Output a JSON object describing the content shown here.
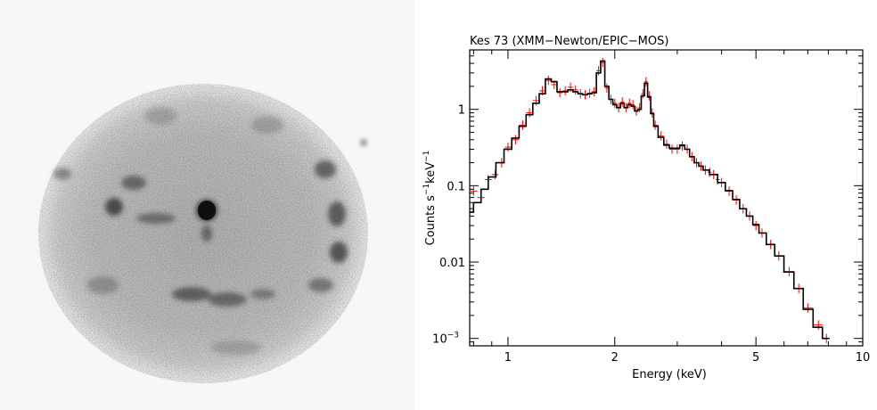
{
  "image": {
    "colormap": "inverted-grayscale",
    "description_mode": "x-ray-image"
  },
  "chart_data": {
    "type": "line",
    "title": "Kes 73 (XMM−Newton/EPIC−MOS)",
    "xlabel": "Energy (keV)",
    "ylabel": {
      "base": "Counts s",
      "sup1": "−1",
      "mid": "keV",
      "sup2": "−1"
    },
    "xscale": "log",
    "yscale": "log",
    "xlim": [
      0.78,
      10
    ],
    "ylim": [
      0.0008,
      6
    ],
    "x_tick_labels": [
      {
        "value": 1,
        "label": "1"
      },
      {
        "value": 2,
        "label": "2"
      },
      {
        "value": 5,
        "label": "5"
      },
      {
        "value": 10,
        "label": "10"
      }
    ],
    "y_tick_labels": [
      {
        "value": 1,
        "label": "1"
      },
      {
        "value": 0.1,
        "label": "0.1"
      },
      {
        "value": 0.01,
        "label": "0.01"
      },
      {
        "value": 0.001,
        "label": "10",
        "sup": "−3"
      }
    ],
    "colors": {
      "data": "#ff0000",
      "model": "#000000",
      "axes": "#000000"
    },
    "series": [
      {
        "role": "data",
        "x": [
          0.8,
          0.84,
          0.88,
          0.92,
          0.96,
          1.0,
          1.05,
          1.1,
          1.15,
          1.2,
          1.25,
          1.3,
          1.35,
          1.4,
          1.45,
          1.5,
          1.55,
          1.6,
          1.65,
          1.7,
          1.75,
          1.8,
          1.85,
          1.9,
          1.95,
          2.0,
          2.05,
          2.1,
          2.15,
          2.2,
          2.25,
          2.3,
          2.35,
          2.4,
          2.45,
          2.5,
          2.55,
          2.6,
          2.7,
          2.8,
          2.9,
          3.0,
          3.1,
          3.2,
          3.3,
          3.4,
          3.5,
          3.6,
          3.7,
          3.8,
          3.9,
          4.0,
          4.2,
          4.4,
          4.6,
          4.8,
          5.0,
          5.2,
          5.5,
          5.8,
          6.2,
          6.6,
          7.0,
          7.5,
          7.9
        ],
        "y": [
          0.085,
          0.07,
          0.12,
          0.14,
          0.2,
          0.32,
          0.4,
          0.62,
          0.9,
          1.3,
          1.75,
          2.4,
          2.1,
          1.65,
          1.75,
          1.95,
          1.8,
          1.6,
          1.55,
          1.62,
          1.7,
          3.2,
          4.1,
          1.9,
          1.35,
          1.2,
          1.05,
          1.25,
          1.05,
          1.2,
          1.15,
          0.95,
          1.05,
          1.6,
          2.3,
          1.5,
          0.9,
          0.62,
          0.45,
          0.35,
          0.3,
          0.3,
          0.33,
          0.3,
          0.24,
          0.2,
          0.18,
          0.16,
          0.15,
          0.14,
          0.12,
          0.11,
          0.085,
          0.065,
          0.05,
          0.04,
          0.03,
          0.024,
          0.017,
          0.012,
          0.0075,
          0.0045,
          0.0025,
          0.0015,
          0.001
        ]
      },
      {
        "role": "model",
        "x": [
          0.78,
          0.82,
          0.86,
          0.9,
          0.95,
          1.0,
          1.05,
          1.1,
          1.15,
          1.2,
          1.25,
          1.3,
          1.35,
          1.4,
          1.45,
          1.5,
          1.55,
          1.6,
          1.65,
          1.7,
          1.75,
          1.8,
          1.85,
          1.9,
          1.95,
          2.0,
          2.05,
          2.1,
          2.15,
          2.2,
          2.25,
          2.3,
          2.35,
          2.4,
          2.45,
          2.5,
          2.55,
          2.6,
          2.7,
          2.8,
          2.9,
          3.0,
          3.1,
          3.2,
          3.3,
          3.4,
          3.5,
          3.6,
          3.8,
          4.0,
          4.2,
          4.4,
          4.6,
          4.8,
          5.0,
          5.2,
          5.5,
          5.8,
          6.2,
          6.6,
          7.0,
          7.5,
          7.9
        ],
        "y": [
          0.045,
          0.06,
          0.09,
          0.13,
          0.2,
          0.3,
          0.42,
          0.6,
          0.85,
          1.2,
          1.6,
          2.5,
          2.3,
          1.7,
          1.7,
          1.8,
          1.7,
          1.6,
          1.55,
          1.6,
          1.65,
          3.0,
          4.3,
          2.0,
          1.35,
          1.15,
          1.05,
          1.2,
          1.05,
          1.15,
          1.1,
          0.95,
          1.0,
          1.5,
          2.2,
          1.45,
          0.88,
          0.6,
          0.43,
          0.34,
          0.31,
          0.31,
          0.34,
          0.3,
          0.24,
          0.2,
          0.18,
          0.16,
          0.14,
          0.11,
          0.086,
          0.066,
          0.05,
          0.04,
          0.031,
          0.024,
          0.017,
          0.012,
          0.0074,
          0.0045,
          0.0024,
          0.0014,
          0.001
        ]
      }
    ]
  }
}
